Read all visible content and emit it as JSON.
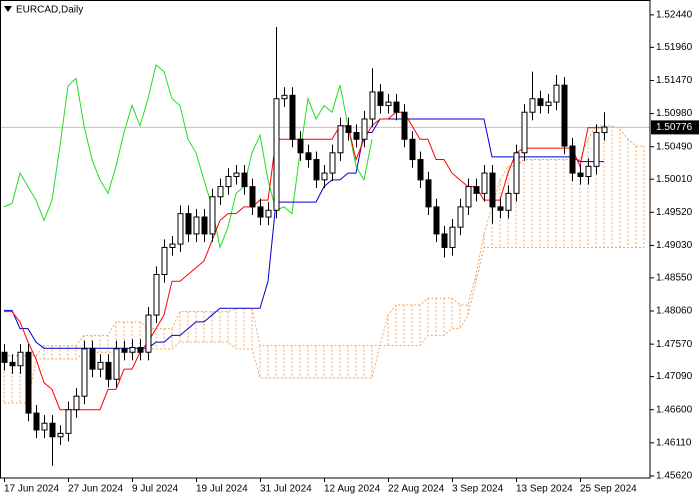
{
  "chart_data": {
    "type": "candlestick",
    "title": "EURCAD,Daily",
    "categories": [
      "17 Jun 2024",
      null,
      null,
      null,
      null,
      null,
      null,
      null,
      "27 Jun 2024",
      null,
      null,
      null,
      null,
      null,
      null,
      null,
      "9 Jul 2024",
      null,
      null,
      null,
      null,
      null,
      null,
      null,
      "19 Jul 2024",
      null,
      null,
      null,
      null,
      null,
      null,
      null,
      "31 Jul 2024",
      null,
      null,
      null,
      null,
      null,
      null,
      null,
      "12 Aug 2024",
      null,
      null,
      null,
      null,
      null,
      null,
      null,
      "22 Aug 2024",
      null,
      null,
      null,
      null,
      null,
      null,
      null,
      "3 Sep 2024",
      null,
      null,
      null,
      null,
      null,
      null,
      null,
      "13 Sep 2024",
      null,
      null,
      null,
      null,
      null,
      null,
      null,
      "25 Sep 2024",
      null,
      null,
      null,
      null,
      null,
      null,
      null,
      null
    ],
    "open": [
      1.4745,
      1.473,
      1.4725,
      1.4745,
      1.4655,
      1.463,
      1.464,
      1.462,
      1.4625,
      1.466,
      1.468,
      1.475,
      1.472,
      1.473,
      1.4705,
      1.475,
      1.4745,
      1.4752,
      1.4745,
      1.48,
      1.486,
      1.49,
      1.4905,
      1.495,
      1.492,
      1.4945,
      1.492,
      1.4975,
      1.499,
      1.5005,
      1.501,
      1.499,
      1.496,
      1.4945,
      1.4955,
      1.512,
      1.5125,
      1.506,
      1.504,
      1.503,
      1.5,
      1.501,
      1.504,
      1.508,
      1.507,
      1.506,
      1.509,
      1.513,
      1.511,
      1.5115,
      1.51,
      1.506,
      1.503,
      1.5,
      1.496,
      1.492,
      1.49,
      1.493,
      1.496,
      1.499,
      1.498,
      1.501,
      1.496,
      1.4955,
      1.498,
      1.504,
      1.51,
      1.512,
      1.511,
      1.5115,
      1.514,
      1.505,
      1.501,
      1.5005,
      1.502,
      1.507,
      null,
      null,
      null,
      null,
      null
    ],
    "high": [
      1.4757,
      1.4742,
      1.4757,
      1.4757,
      1.4667,
      1.4652,
      1.4652,
      1.4637,
      1.4672,
      1.4692,
      1.4762,
      1.4762,
      1.4742,
      1.4742,
      1.4762,
      1.4762,
      1.4764,
      1.4764,
      1.4812,
      1.4872,
      1.4912,
      1.4917,
      1.4962,
      1.4962,
      1.4957,
      1.4957,
      1.4987,
      1.5002,
      1.5017,
      1.5022,
      1.5022,
      1.5002,
      1.4972,
      1.4967,
      1.5226,
      1.5137,
      1.5137,
      1.5072,
      1.5052,
      1.5042,
      1.5022,
      1.5052,
      1.5092,
      1.5092,
      1.5082,
      1.5102,
      1.5165,
      1.5142,
      1.5127,
      1.5127,
      1.5112,
      1.5072,
      1.5042,
      1.5012,
      1.4972,
      1.4932,
      1.4942,
      1.4972,
      1.5002,
      1.5002,
      1.5022,
      1.5022,
      1.4972,
      1.4992,
      1.5052,
      1.5112,
      1.516,
      1.5132,
      1.5127,
      1.5155,
      1.5152,
      1.5062,
      1.5022,
      1.5032,
      1.5082,
      1.51,
      null,
      null,
      null,
      null,
      null
    ],
    "low": [
      1.4718,
      1.4713,
      1.4713,
      1.4643,
      1.4618,
      1.4618,
      1.4577,
      1.4608,
      1.4613,
      1.4648,
      1.4668,
      1.4708,
      1.4708,
      1.4693,
      1.4693,
      1.4733,
      1.4733,
      1.4733,
      1.4733,
      1.4788,
      1.4848,
      1.4888,
      1.4893,
      1.4908,
      1.4908,
      1.4908,
      1.4908,
      1.4963,
      1.4978,
      1.4993,
      1.4978,
      1.4948,
      1.4933,
      1.4933,
      1.4943,
      1.5108,
      1.5048,
      1.5028,
      1.5018,
      1.4988,
      1.4988,
      1.4998,
      1.5028,
      1.5058,
      1.5048,
      1.5048,
      1.5078,
      1.5098,
      1.5098,
      1.5088,
      1.5048,
      1.5018,
      1.4988,
      1.4948,
      1.4908,
      1.4885,
      1.4888,
      1.4918,
      1.4948,
      1.4968,
      1.4968,
      1.4935,
      1.4943,
      1.4943,
      1.4968,
      1.5028,
      1.5088,
      1.5098,
      1.5098,
      1.5103,
      1.5038,
      1.4998,
      1.4993,
      1.4993,
      1.5008,
      1.5058,
      null,
      null,
      null,
      null,
      null
    ],
    "close": [
      1.473,
      1.4725,
      1.4745,
      1.4655,
      1.463,
      1.464,
      1.462,
      1.4625,
      1.466,
      1.468,
      1.475,
      1.472,
      1.473,
      1.4705,
      1.475,
      1.4745,
      1.4752,
      1.4745,
      1.48,
      1.486,
      1.49,
      1.4905,
      1.495,
      1.492,
      1.4945,
      1.492,
      1.4975,
      1.499,
      1.5005,
      1.501,
      1.499,
      1.496,
      1.4945,
      1.4955,
      1.512,
      1.5125,
      1.506,
      1.504,
      1.503,
      1.5,
      1.501,
      1.504,
      1.508,
      1.507,
      1.506,
      1.509,
      1.513,
      1.511,
      1.5115,
      1.51,
      1.506,
      1.503,
      1.5,
      1.496,
      1.492,
      1.49,
      1.493,
      1.496,
      1.499,
      1.498,
      1.501,
      1.496,
      1.4955,
      1.498,
      1.504,
      1.51,
      1.512,
      1.511,
      1.5115,
      1.514,
      1.505,
      1.501,
      1.5005,
      1.502,
      1.507,
      1.5078,
      null,
      null,
      null,
      null,
      null
    ],
    "up_color": "#ffffff",
    "down_color": "#000000",
    "wick_color": "#000000",
    "tenkan": {
      "color": "#ff0000",
      "values": [
        1.4805,
        1.4805,
        1.479,
        1.476,
        1.4735,
        1.47,
        1.469,
        1.466,
        1.466,
        1.466,
        1.466,
        1.466,
        1.466,
        1.469,
        1.469,
        1.472,
        1.472,
        1.4745,
        1.476,
        1.478,
        1.48,
        1.485,
        1.485,
        1.486,
        1.487,
        1.488,
        1.491,
        1.494,
        1.495,
        1.495,
        1.496,
        1.496,
        1.497,
        1.497,
        1.506,
        1.506,
        1.506,
        1.506,
        1.506,
        1.506,
        1.506,
        1.506,
        1.508,
        1.508,
        1.503,
        1.506,
        1.508,
        1.509,
        1.509,
        1.51,
        1.51,
        1.508,
        1.506,
        1.506,
        1.503,
        1.503,
        1.501,
        1.5,
        1.499,
        1.499,
        1.497,
        1.497,
        1.497,
        1.501,
        1.504,
        1.5047,
        1.5047,
        1.5047,
        1.5047,
        1.5047,
        1.5047,
        1.5047,
        1.502,
        1.5077,
        1.5077,
        1.5077,
        null,
        null,
        null,
        null,
        null
      ]
    },
    "kijun": {
      "color": "#0000cd",
      "values": [
        1.4807,
        1.4807,
        1.478,
        1.478,
        1.476,
        1.4751,
        1.4751,
        1.4751,
        1.4751,
        1.4751,
        1.4751,
        1.4751,
        1.4751,
        1.4751,
        1.4751,
        1.4751,
        1.4751,
        1.4751,
        1.4751,
        1.476,
        1.476,
        1.477,
        1.477,
        1.478,
        1.479,
        1.479,
        1.48,
        1.481,
        1.481,
        1.481,
        1.481,
        1.481,
        1.481,
        1.485,
        1.4967,
        1.4967,
        1.4967,
        1.4967,
        1.4967,
        1.4967,
        1.499,
        1.5,
        1.5,
        1.501,
        1.501,
        1.507,
        1.507,
        1.509,
        1.509,
        1.509,
        1.509,
        1.509,
        1.509,
        1.509,
        1.509,
        1.509,
        1.509,
        1.509,
        1.509,
        1.509,
        1.509,
        1.5034,
        1.5034,
        1.5034,
        1.5034,
        1.5034,
        1.5034,
        1.5034,
        1.5034,
        1.5034,
        1.5034,
        1.5034,
        1.5027,
        1.5027,
        1.5027,
        1.5027,
        null,
        null,
        null,
        null,
        null
      ]
    },
    "chikou": {
      "color": "#22dd22",
      "values": [
        1.496,
        1.4965,
        1.501,
        1.499,
        1.497,
        1.494,
        1.497,
        1.505,
        1.5139,
        1.515,
        1.508,
        1.503,
        1.5,
        1.498,
        1.502,
        1.507,
        1.511,
        1.508,
        1.512,
        1.517,
        1.516,
        1.512,
        1.511,
        1.506,
        1.504,
        1.5,
        1.496,
        1.49,
        1.493,
        1.498,
        1.499,
        1.504,
        1.5066,
        1.5,
        1.4955,
        1.496,
        1.495,
        1.504,
        1.512,
        1.509,
        1.511,
        1.51,
        1.514,
        1.508,
        1.502,
        1.5,
        1.506,
        null,
        null,
        null,
        null,
        null,
        null,
        null,
        null,
        null,
        null,
        null,
        null,
        null,
        null,
        null,
        null,
        null,
        null,
        null,
        null,
        null,
        null,
        null,
        null,
        null,
        null,
        null,
        null,
        null,
        null,
        null,
        null,
        null,
        null
      ]
    },
    "cloud": {
      "color": "#f4a460",
      "span_a": [
        1.474,
        1.474,
        1.474,
        1.474,
        1.474,
        1.4755,
        1.4755,
        1.4755,
        1.4755,
        1.4755,
        1.477,
        1.477,
        1.477,
        1.477,
        1.479,
        1.479,
        1.479,
        1.479,
        1.478,
        1.478,
        1.478,
        1.478,
        1.4805,
        1.4805,
        1.4805,
        1.4805,
        1.4805,
        1.4805,
        1.4805,
        1.481,
        1.481,
        1.481,
        1.4755,
        1.4755,
        1.4755,
        1.4755,
        1.4755,
        1.4755,
        1.4755,
        1.4755,
        1.4755,
        1.4755,
        1.4755,
        1.4755,
        1.4755,
        1.4755,
        1.4755,
        1.4755,
        1.48,
        1.4815,
        1.4815,
        1.4815,
        1.4815,
        1.4825,
        1.4825,
        1.4825,
        1.4825,
        1.4815,
        1.4815,
        1.486,
        1.492,
        1.496,
        1.5,
        1.502,
        1.502,
        1.503,
        1.503,
        1.503,
        1.503,
        1.503,
        1.503,
        1.503,
        1.503,
        1.506,
        1.508,
        1.508,
        1.508,
        1.5075,
        1.506,
        1.505,
        1.505
      ],
      "span_b": [
        1.467,
        1.467,
        1.467,
        1.467,
        1.4735,
        1.4735,
        1.4735,
        1.4735,
        1.4735,
        1.4735,
        1.4745,
        1.4745,
        1.4745,
        1.4745,
        1.4745,
        1.4745,
        1.4745,
        1.4745,
        1.475,
        1.475,
        1.475,
        1.475,
        1.476,
        1.476,
        1.476,
        1.476,
        1.476,
        1.476,
        1.476,
        1.475,
        1.475,
        1.475,
        1.4707,
        1.4707,
        1.4707,
        1.4707,
        1.4707,
        1.4707,
        1.4707,
        1.4707,
        1.4707,
        1.4707,
        1.4707,
        1.4707,
        1.4707,
        1.4707,
        1.4707,
        1.4755,
        1.4755,
        1.4755,
        1.4755,
        1.4755,
        1.4755,
        1.477,
        1.477,
        1.477,
        1.478,
        1.478,
        1.48,
        1.485,
        1.49,
        1.49,
        1.49,
        1.49,
        1.49,
        1.49,
        1.49,
        1.49,
        1.49,
        1.49,
        1.49,
        1.49,
        1.49,
        1.49,
        1.49,
        1.49,
        1.49,
        1.49,
        1.49,
        1.49,
        1.49
      ]
    },
    "ylim": [
      1.4559,
      1.5266
    ],
    "yticks": [
      {
        "value": 1.5244,
        "label": "1.52440"
      },
      {
        "value": 1.5196,
        "label": "1.51960"
      },
      {
        "value": 1.5147,
        "label": "1.51470"
      },
      {
        "value": 1.5098,
        "label": "1.50980"
      },
      {
        "value": 1.5049,
        "label": "1.50490"
      },
      {
        "value": 1.5001,
        "label": "1.50010"
      },
      {
        "value": 1.4952,
        "label": "1.49520"
      },
      {
        "value": 1.4903,
        "label": "1.49030"
      },
      {
        "value": 1.4855,
        "label": "1.48550"
      },
      {
        "value": 1.4806,
        "label": "1.48060"
      },
      {
        "value": 1.4757,
        "label": "1.47570"
      },
      {
        "value": 1.4709,
        "label": "1.47090"
      },
      {
        "value": 1.466,
        "label": "1.46600"
      },
      {
        "value": 1.4611,
        "label": "1.46110"
      },
      {
        "value": 1.4562,
        "label": "1.45620"
      }
    ],
    "last_price": {
      "value": 1.50776,
      "label": "1.50776",
      "color": "#c0c0c0"
    }
  }
}
